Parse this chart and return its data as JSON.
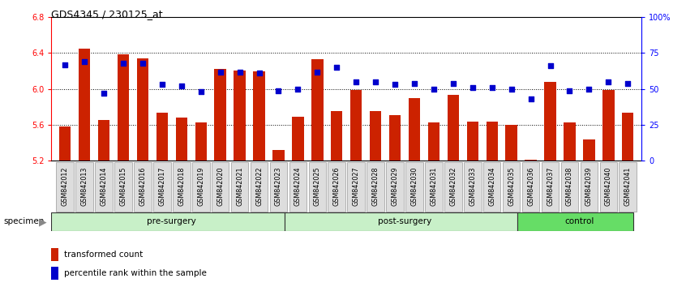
{
  "title": "GDS4345 / 230125_at",
  "categories": [
    "GSM842012",
    "GSM842013",
    "GSM842014",
    "GSM842015",
    "GSM842016",
    "GSM842017",
    "GSM842018",
    "GSM842019",
    "GSM842020",
    "GSM842021",
    "GSM842022",
    "GSM842023",
    "GSM842024",
    "GSM842025",
    "GSM842026",
    "GSM842027",
    "GSM842028",
    "GSM842029",
    "GSM842030",
    "GSM842031",
    "GSM842032",
    "GSM842033",
    "GSM842034",
    "GSM842035",
    "GSM842036",
    "GSM842037",
    "GSM842038",
    "GSM842039",
    "GSM842040",
    "GSM842041"
  ],
  "bar_values": [
    5.58,
    6.45,
    5.65,
    6.39,
    6.34,
    5.74,
    5.68,
    5.63,
    6.22,
    6.21,
    6.2,
    5.32,
    5.69,
    6.33,
    5.75,
    5.99,
    5.75,
    5.71,
    5.9,
    5.63,
    5.93,
    5.64,
    5.64,
    5.6,
    5.21,
    6.08,
    5.63,
    5.44,
    5.99,
    5.74
  ],
  "percentile_values": [
    67,
    69,
    47,
    68,
    68,
    53,
    52,
    48,
    62,
    62,
    61,
    49,
    50,
    62,
    65,
    55,
    55,
    53,
    54,
    50,
    54,
    51,
    51,
    50,
    43,
    66,
    49,
    50,
    55,
    54
  ],
  "groups": [
    {
      "label": "pre-surgery",
      "start": 0,
      "end": 12
    },
    {
      "label": "post-surgery",
      "start": 12,
      "end": 24
    },
    {
      "label": "control",
      "start": 24,
      "end": 30
    }
  ],
  "group_colors": [
    "#C8F0C8",
    "#C8F0C8",
    "#66DD66"
  ],
  "ylim_left": [
    5.2,
    6.8
  ],
  "ylim_right": [
    0,
    100
  ],
  "yticks_left": [
    5.2,
    5.6,
    6.0,
    6.4,
    6.8
  ],
  "yticks_right": [
    0,
    25,
    50,
    75,
    100
  ],
  "ytick_labels_right": [
    "0",
    "25",
    "50",
    "75",
    "100%"
  ],
  "bar_color": "#CC2200",
  "dot_color": "#0000CC",
  "bar_bottom": 5.2,
  "grid_lines": [
    5.6,
    6.0,
    6.4
  ],
  "xtick_bg": "#CCCCCC",
  "legend_items": [
    {
      "label": "transformed count",
      "color": "#CC2200"
    },
    {
      "label": "percentile rank within the sample",
      "color": "#0000CC"
    }
  ]
}
